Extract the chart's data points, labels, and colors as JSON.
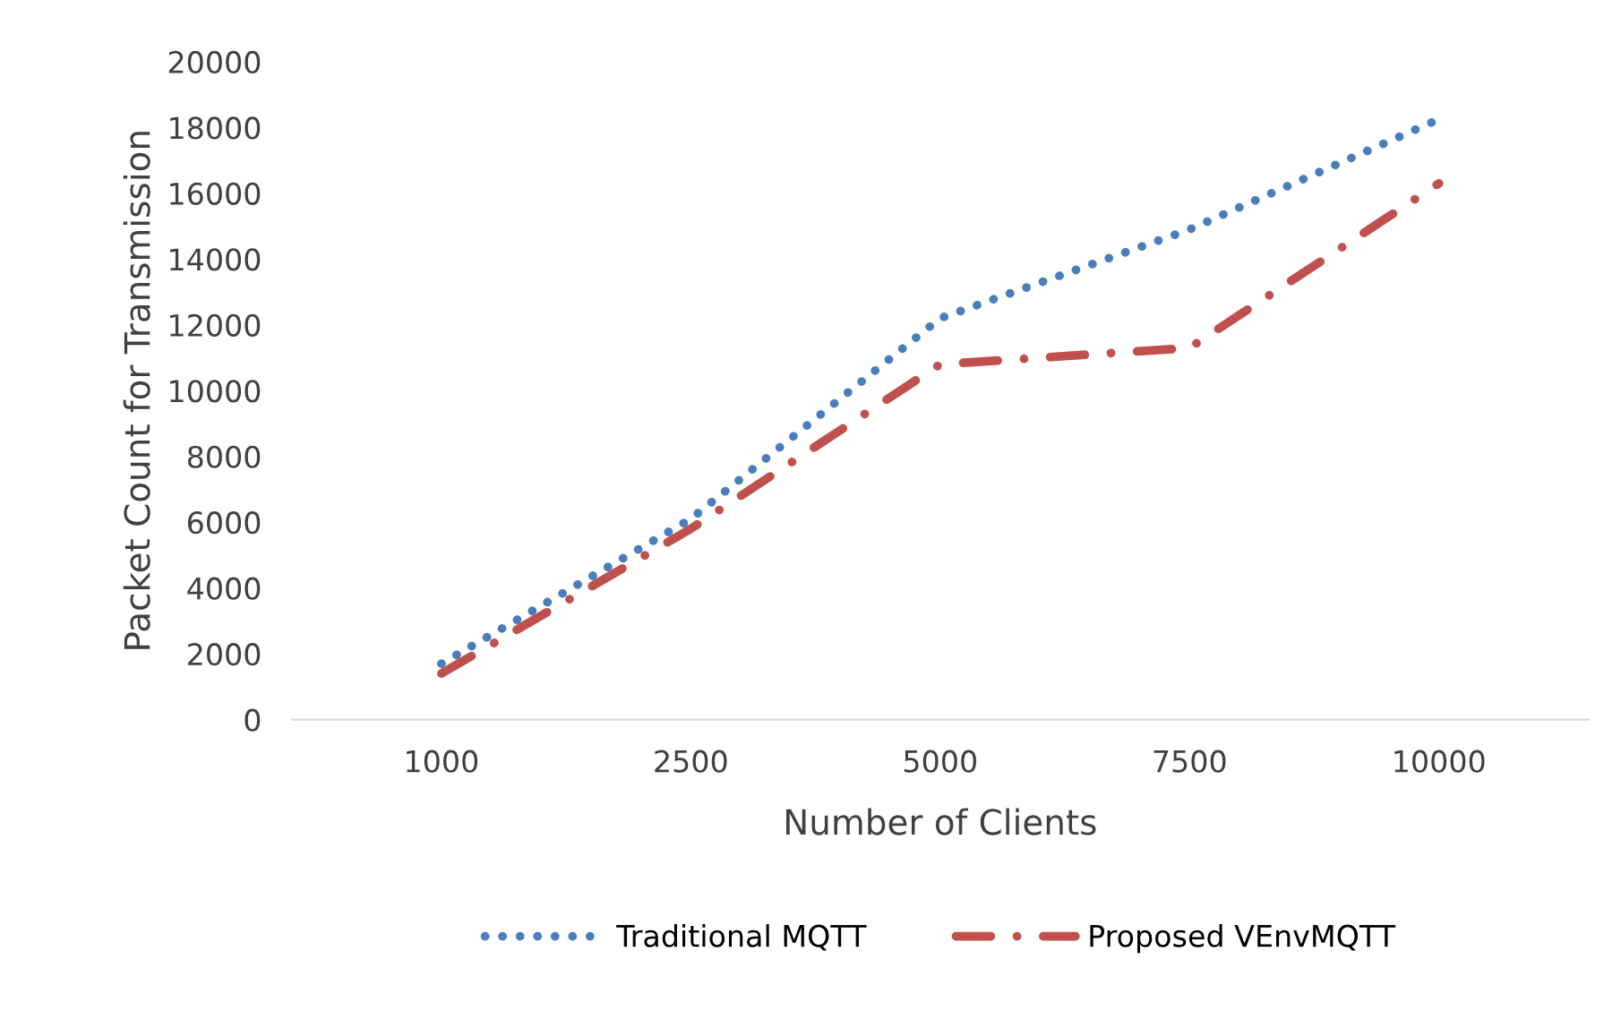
{
  "chart_data": {
    "type": "line",
    "xlabel": "Number of Clients",
    "ylabel": "Packet Count for Transmission",
    "categories": [
      "1000",
      "2500",
      "5000",
      "7500",
      "10000"
    ],
    "series": [
      {
        "name": "Traditional MQTT",
        "color": "#4a7ebb",
        "line_style": "dotted",
        "values": [
          1700,
          6100,
          12200,
          14900,
          18250
        ]
      },
      {
        "name": "Proposed VEnvMQTT",
        "color": "#c0504d",
        "line_style": "dashdot",
        "values": [
          1400,
          5800,
          10800,
          11300,
          16300
        ]
      }
    ],
    "ylim": [
      0,
      20000
    ],
    "yticks": [
      0,
      2000,
      4000,
      6000,
      8000,
      10000,
      12000,
      14000,
      16000,
      18000,
      20000
    ],
    "grid": false,
    "legend": "bottom",
    "marker": "none"
  }
}
